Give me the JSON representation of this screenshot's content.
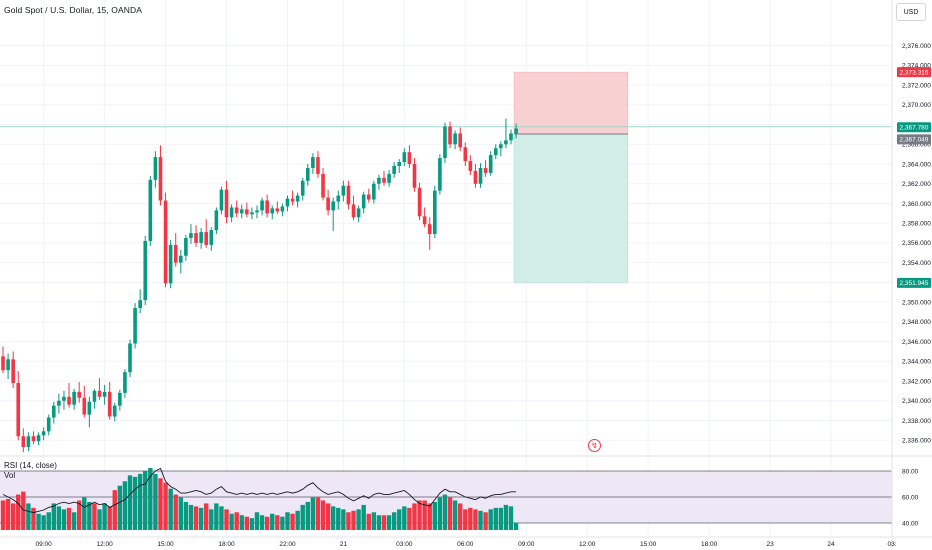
{
  "header": {
    "title": "Gold Spot / U.S. Dollar, 15, OANDA",
    "currency_button": "USD"
  },
  "rsi_pane": {
    "label": "RSI (14, close)",
    "volume_label": "Vol",
    "levels": [
      "80.00",
      "60.00",
      "40.00"
    ]
  },
  "price_tags": {
    "stop": "2,373.316",
    "current": "2,367.780",
    "entry": "2,367.049",
    "target": "2,351.945"
  },
  "alert_icon": "lightning-icon",
  "colors": {
    "up": "#089981",
    "down": "#f23645",
    "stop_zone": "#f8d0d2",
    "target_zone": "#d2ece6",
    "rsi_line": "#131722",
    "rsi_band": "#ede7f6",
    "current_tag": "#089981",
    "entry_tag": "#787b86",
    "grid": "#f0f3fa"
  },
  "chart_data": {
    "type": "candlestick",
    "title": "Gold Spot / U.S. Dollar, 15, OANDA",
    "y_ticks": [
      2336,
      2338,
      2340,
      2342,
      2344,
      2346,
      2348,
      2350,
      2352,
      2354,
      2356,
      2358,
      2360,
      2362,
      2364,
      2366,
      2368,
      2370,
      2372,
      2374,
      2376
    ],
    "y_tick_labels": [
      "2,336.000",
      "2,338.000",
      "2,340.000",
      "2,342.000",
      "2,344.000",
      "2,346.000",
      "2,348.000",
      "2,350.000",
      "2,352.000",
      "2,354.000",
      "2,356.000",
      "2,358.000",
      "2,360.000",
      "2,362.000",
      "2,364.000",
      "2,366.000",
      "2,368.000",
      "2,370.000",
      "2,372.000",
      "2,374.000",
      "2,376.000"
    ],
    "ylim": [
      2334.6,
      2378.4
    ],
    "x_tick_labels": [
      "09:00",
      "12:00",
      "15:00",
      "18:00",
      "22:00",
      "21",
      "03:00",
      "06:00",
      "09:00",
      "12:00",
      "15:00",
      "18:00",
      "23",
      "24",
      "03:"
    ],
    "x_tick_bar_index": [
      8,
      20,
      32,
      44,
      56,
      67,
      79,
      91,
      103,
      115,
      127,
      139,
      151,
      163,
      175
    ],
    "candles": [
      [
        2344.5,
        2345.5,
        2342.8,
        2343.1
      ],
      [
        2343.1,
        2344.8,
        2342.2,
        2344.2
      ],
      [
        2344.2,
        2345.0,
        2341.3,
        2341.8
      ],
      [
        2341.8,
        2343.0,
        2336.0,
        2336.4
      ],
      [
        2336.4,
        2337.2,
        2334.8,
        2335.3
      ],
      [
        2335.3,
        2336.8,
        2334.9,
        2336.4
      ],
      [
        2336.4,
        2336.9,
        2335.6,
        2335.9
      ],
      [
        2335.9,
        2336.8,
        2335.5,
        2336.5
      ],
      [
        2336.5,
        2337.3,
        2336.0,
        2336.9
      ],
      [
        2336.9,
        2338.6,
        2336.5,
        2338.3
      ],
      [
        2338.3,
        2339.9,
        2337.7,
        2339.5
      ],
      [
        2339.5,
        2340.7,
        2338.7,
        2340.0
      ],
      [
        2340.0,
        2341.0,
        2339.1,
        2340.4
      ],
      [
        2340.4,
        2341.8,
        2339.3,
        2339.6
      ],
      [
        2339.6,
        2341.2,
        2339.1,
        2340.9
      ],
      [
        2340.9,
        2341.9,
        2339.8,
        2340.3
      ],
      [
        2340.3,
        2341.5,
        2338.3,
        2338.6
      ],
      [
        2338.6,
        2340.4,
        2337.3,
        2339.9
      ],
      [
        2339.9,
        2341.2,
        2339.2,
        2341.0
      ],
      [
        2341.0,
        2342.3,
        2340.1,
        2340.4
      ],
      [
        2340.4,
        2341.6,
        2339.6,
        2340.9
      ],
      [
        2340.9,
        2341.9,
        2338.1,
        2338.4
      ],
      [
        2338.4,
        2339.8,
        2337.9,
        2339.5
      ],
      [
        2339.5,
        2341.1,
        2339.0,
        2340.8
      ],
      [
        2340.8,
        2343.2,
        2340.3,
        2342.9
      ],
      [
        2342.9,
        2346.2,
        2342.4,
        2345.8
      ],
      [
        2345.8,
        2349.9,
        2345.3,
        2349.4
      ],
      [
        2349.4,
        2351.3,
        2348.9,
        2350.2
      ],
      [
        2350.2,
        2356.7,
        2349.7,
        2356.2
      ],
      [
        2356.2,
        2362.8,
        2355.7,
        2362.4
      ],
      [
        2362.4,
        2365.3,
        2361.6,
        2364.7
      ],
      [
        2364.7,
        2365.9,
        2359.8,
        2360.3
      ],
      [
        2360.3,
        2361.1,
        2351.5,
        2351.9
      ],
      [
        2351.9,
        2356.3,
        2351.4,
        2355.8
      ],
      [
        2355.8,
        2357.0,
        2353.6,
        2354.0
      ],
      [
        2354.0,
        2355.3,
        2352.9,
        2354.7
      ],
      [
        2354.7,
        2356.8,
        2354.2,
        2356.5
      ],
      [
        2356.5,
        2357.9,
        2355.9,
        2357.0
      ],
      [
        2357.0,
        2357.8,
        2355.6,
        2356.0
      ],
      [
        2356.0,
        2357.5,
        2355.4,
        2357.1
      ],
      [
        2357.1,
        2358.4,
        2355.5,
        2355.8
      ],
      [
        2355.8,
        2357.6,
        2355.2,
        2357.3
      ],
      [
        2357.3,
        2359.6,
        2356.9,
        2359.3
      ],
      [
        2359.3,
        2361.7,
        2358.9,
        2361.4
      ],
      [
        2361.4,
        2362.3,
        2358.0,
        2358.6
      ],
      [
        2358.6,
        2359.9,
        2358.1,
        2359.6
      ],
      [
        2359.6,
        2360.3,
        2358.6,
        2359.0
      ],
      [
        2359.0,
        2359.9,
        2358.5,
        2359.4
      ],
      [
        2359.4,
        2360.1,
        2358.6,
        2358.9
      ],
      [
        2358.9,
        2359.6,
        2358.4,
        2359.1
      ],
      [
        2359.1,
        2359.8,
        2358.5,
        2359.3
      ],
      [
        2359.3,
        2360.6,
        2358.8,
        2360.3
      ],
      [
        2360.3,
        2360.9,
        2358.6,
        2359.0
      ],
      [
        2359.0,
        2359.8,
        2358.4,
        2359.5
      ],
      [
        2359.5,
        2360.2,
        2358.9,
        2359.2
      ],
      [
        2359.2,
        2360.0,
        2358.7,
        2359.7
      ],
      [
        2359.7,
        2360.8,
        2359.2,
        2360.5
      ],
      [
        2360.5,
        2361.3,
        2359.8,
        2360.2
      ],
      [
        2360.2,
        2361.1,
        2359.6,
        2360.8
      ],
      [
        2360.8,
        2362.6,
        2360.3,
        2362.3
      ],
      [
        2362.3,
        2364.0,
        2361.8,
        2363.6
      ],
      [
        2363.6,
        2365.1,
        2363.0,
        2364.7
      ],
      [
        2364.7,
        2365.3,
        2362.6,
        2363.0
      ],
      [
        2363.0,
        2363.6,
        2360.3,
        2360.6
      ],
      [
        2360.6,
        2361.4,
        2358.8,
        2359.3
      ],
      [
        2359.3,
        2360.6,
        2357.2,
        2360.2
      ],
      [
        2360.2,
        2361.3,
        2359.4,
        2360.8
      ],
      [
        2360.8,
        2362.3,
        2360.2,
        2361.8
      ],
      [
        2361.8,
        2362.3,
        2359.4,
        2359.9
      ],
      [
        2359.9,
        2360.8,
        2358.3,
        2358.6
      ],
      [
        2358.6,
        2359.8,
        2358.1,
        2359.5
      ],
      [
        2359.5,
        2361.2,
        2359.0,
        2360.9
      ],
      [
        2360.9,
        2361.5,
        2360.1,
        2360.4
      ],
      [
        2360.4,
        2362.3,
        2360.0,
        2362.0
      ],
      [
        2362.0,
        2362.9,
        2361.4,
        2362.6
      ],
      [
        2362.6,
        2363.3,
        2361.8,
        2362.1
      ],
      [
        2362.1,
        2363.4,
        2361.7,
        2363.0
      ],
      [
        2363.0,
        2364.2,
        2362.6,
        2363.8
      ],
      [
        2363.8,
        2364.5,
        2363.1,
        2364.2
      ],
      [
        2364.2,
        2365.6,
        2363.8,
        2365.2
      ],
      [
        2365.2,
        2365.9,
        2363.6,
        2364.0
      ],
      [
        2364.0,
        2364.6,
        2361.2,
        2361.6
      ],
      [
        2361.6,
        2362.1,
        2358.3,
        2358.7
      ],
      [
        2358.7,
        2359.6,
        2357.6,
        2357.9
      ],
      [
        2357.9,
        2358.6,
        2355.3,
        2356.9
      ],
      [
        2356.9,
        2361.8,
        2356.5,
        2361.3
      ],
      [
        2361.3,
        2365.0,
        2360.9,
        2364.6
      ],
      [
        2364.6,
        2368.2,
        2364.1,
        2367.8
      ],
      [
        2367.8,
        2368.3,
        2365.6,
        2366.0
      ],
      [
        2366.0,
        2367.4,
        2365.5,
        2367.1
      ],
      [
        2367.1,
        2367.7,
        2365.3,
        2365.7
      ],
      [
        2365.7,
        2366.2,
        2363.8,
        2364.3
      ],
      [
        2364.3,
        2364.9,
        2362.9,
        2363.3
      ],
      [
        2363.3,
        2364.0,
        2361.6,
        2362.0
      ],
      [
        2362.0,
        2364.1,
        2361.6,
        2363.6
      ],
      [
        2363.6,
        2364.4,
        2362.7,
        2363.1
      ],
      [
        2363.1,
        2365.3,
        2362.8,
        2364.9
      ],
      [
        2364.9,
        2366.0,
        2364.5,
        2365.6
      ],
      [
        2365.6,
        2366.3,
        2364.8,
        2366.0
      ],
      [
        2366.0,
        2368.6,
        2365.6,
        2366.4
      ],
      [
        2366.4,
        2367.5,
        2366.0,
        2367.1
      ],
      [
        2367.1,
        2368.1,
        2366.6,
        2367.6
      ]
    ],
    "current_price": 2367.78,
    "position": {
      "type": "short",
      "stop": 2373.316,
      "entry": 2367.049,
      "target": 2351.945,
      "from_bar": 101,
      "to_bar": 123
    },
    "rsi": {
      "ylim": [
        30,
        90
      ],
      "levels": [
        80,
        60,
        40
      ],
      "values": [
        62,
        60,
        58,
        55,
        50,
        49,
        48,
        49,
        50,
        52,
        53,
        55,
        56,
        55,
        56,
        55,
        52,
        54,
        56,
        54,
        55,
        52,
        54,
        56,
        58,
        62,
        66,
        69,
        70,
        76,
        80,
        82,
        72,
        68,
        66,
        63,
        63,
        64,
        65,
        64,
        62,
        63,
        66,
        68,
        64,
        63,
        62,
        63,
        62,
        63,
        62,
        63,
        62,
        63,
        62,
        63,
        64,
        63,
        64,
        66,
        69,
        71,
        67,
        64,
        62,
        63,
        64,
        62,
        59,
        57,
        59,
        61,
        59,
        62,
        63,
        62,
        62,
        63,
        64,
        65,
        62,
        58,
        55,
        54,
        53,
        58,
        63,
        66,
        64,
        64,
        62,
        60,
        59,
        58,
        60,
        59,
        61,
        62,
        62,
        63,
        64,
        64
      ]
    },
    "volume": [
      [
        20,
        0
      ],
      [
        21,
        0
      ],
      [
        18,
        0
      ],
      [
        24,
        0
      ],
      [
        26,
        0
      ],
      [
        18,
        1
      ],
      [
        15,
        0
      ],
      [
        11,
        1
      ],
      [
        10,
        1
      ],
      [
        12,
        1
      ],
      [
        18,
        1
      ],
      [
        16,
        1
      ],
      [
        14,
        1
      ],
      [
        15,
        0
      ],
      [
        12,
        1
      ],
      [
        20,
        0
      ],
      [
        22,
        1
      ],
      [
        19,
        1
      ],
      [
        18,
        0
      ],
      [
        14,
        1
      ],
      [
        18,
        1
      ],
      [
        16,
        0
      ],
      [
        27,
        0
      ],
      [
        30,
        1
      ],
      [
        33,
        1
      ],
      [
        37,
        1
      ],
      [
        36,
        1
      ],
      [
        38,
        1
      ],
      [
        40,
        1
      ],
      [
        42,
        1
      ],
      [
        38,
        1
      ],
      [
        35,
        0
      ],
      [
        32,
        0
      ],
      [
        28,
        1
      ],
      [
        24,
        0
      ],
      [
        22,
        1
      ],
      [
        19,
        1
      ],
      [
        17,
        1
      ],
      [
        16,
        0
      ],
      [
        15,
        1
      ],
      [
        18,
        0
      ],
      [
        14,
        1
      ],
      [
        18,
        1
      ],
      [
        16,
        1
      ],
      [
        14,
        0
      ],
      [
        11,
        1
      ],
      [
        12,
        0
      ],
      [
        10,
        1
      ],
      [
        9,
        0
      ],
      [
        8,
        1
      ],
      [
        12,
        1
      ],
      [
        10,
        1
      ],
      [
        9,
        0
      ],
      [
        11,
        1
      ],
      [
        10,
        0
      ],
      [
        9,
        1
      ],
      [
        12,
        1
      ],
      [
        11,
        0
      ],
      [
        13,
        1
      ],
      [
        17,
        1
      ],
      [
        19,
        1
      ],
      [
        22,
        1
      ],
      [
        22,
        0
      ],
      [
        20,
        0
      ],
      [
        18,
        0
      ],
      [
        16,
        1
      ],
      [
        15,
        1
      ],
      [
        14,
        1
      ],
      [
        12,
        0
      ],
      [
        13,
        0
      ],
      [
        14,
        1
      ],
      [
        17,
        1
      ],
      [
        11,
        0
      ],
      [
        12,
        1
      ],
      [
        10,
        1
      ],
      [
        10,
        0
      ],
      [
        10,
        1
      ],
      [
        12,
        1
      ],
      [
        14,
        1
      ],
      [
        16,
        1
      ],
      [
        15,
        0
      ],
      [
        18,
        0
      ],
      [
        20,
        0
      ],
      [
        20,
        0
      ],
      [
        18,
        0
      ],
      [
        19,
        1
      ],
      [
        22,
        1
      ],
      [
        24,
        1
      ],
      [
        22,
        0
      ],
      [
        20,
        1
      ],
      [
        18,
        0
      ],
      [
        14,
        0
      ],
      [
        15,
        0
      ],
      [
        14,
        0
      ],
      [
        13,
        1
      ],
      [
        12,
        0
      ],
      [
        14,
        1
      ],
      [
        15,
        1
      ],
      [
        15,
        1
      ],
      [
        17,
        1
      ],
      [
        16,
        1
      ],
      [
        5,
        1
      ]
    ]
  }
}
